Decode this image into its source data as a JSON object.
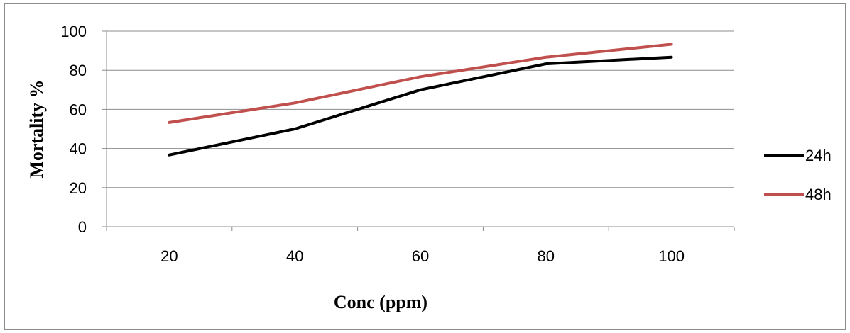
{
  "chart_data": {
    "type": "line",
    "title": "",
    "xlabel": "Conc (ppm)",
    "ylabel": "Mortality  %",
    "categories": [
      "20",
      "40",
      "60",
      "80",
      "100"
    ],
    "ylim": [
      0,
      100
    ],
    "yticks": [
      "0",
      "20",
      "40",
      "60",
      "80",
      "100"
    ],
    "grid": "horizontal",
    "legend_position": "right",
    "series": [
      {
        "name": "24h",
        "color": "#000000",
        "values": [
          36.7,
          50,
          70,
          83.3,
          86.7
        ]
      },
      {
        "name": "48h",
        "color": "#c0504d",
        "values": [
          53.3,
          63.3,
          76.7,
          86.7,
          93.3
        ]
      }
    ]
  }
}
